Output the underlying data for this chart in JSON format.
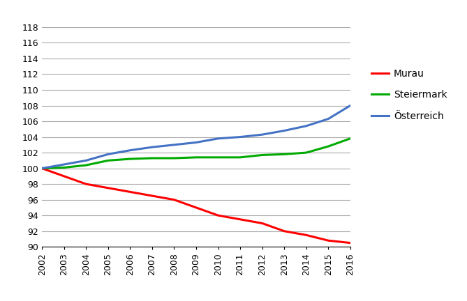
{
  "years": [
    2002,
    2003,
    2004,
    2005,
    2006,
    2007,
    2008,
    2009,
    2010,
    2011,
    2012,
    2013,
    2014,
    2015,
    2016
  ],
  "murau": [
    100.0,
    99.0,
    98.0,
    97.5,
    97.0,
    96.5,
    96.0,
    95.0,
    94.0,
    93.5,
    93.0,
    92.0,
    91.5,
    90.8,
    90.5
  ],
  "steiermark": [
    100.0,
    100.1,
    100.4,
    101.0,
    101.2,
    101.3,
    101.3,
    101.4,
    101.4,
    101.4,
    101.7,
    101.8,
    102.0,
    102.8,
    103.8
  ],
  "oesterreich": [
    100.0,
    100.5,
    101.0,
    101.8,
    102.3,
    102.7,
    103.0,
    103.3,
    103.8,
    104.0,
    104.3,
    104.8,
    105.4,
    106.3,
    108.0
  ],
  "murau_color": "#ff0000",
  "steiermark_color": "#00aa00",
  "oesterreich_color": "#4472c4",
  "line_width": 2.2,
  "ylim": [
    90,
    118
  ],
  "yticks": [
    90,
    92,
    94,
    96,
    98,
    100,
    102,
    104,
    106,
    108,
    110,
    112,
    114,
    116,
    118
  ],
  "legend_labels": [
    "Murau",
    "Steiermark",
    "Österreich"
  ],
  "grid_color": "#aaaaaa",
  "background_color": "#ffffff",
  "tick_fontsize": 9,
  "legend_fontsize": 10
}
